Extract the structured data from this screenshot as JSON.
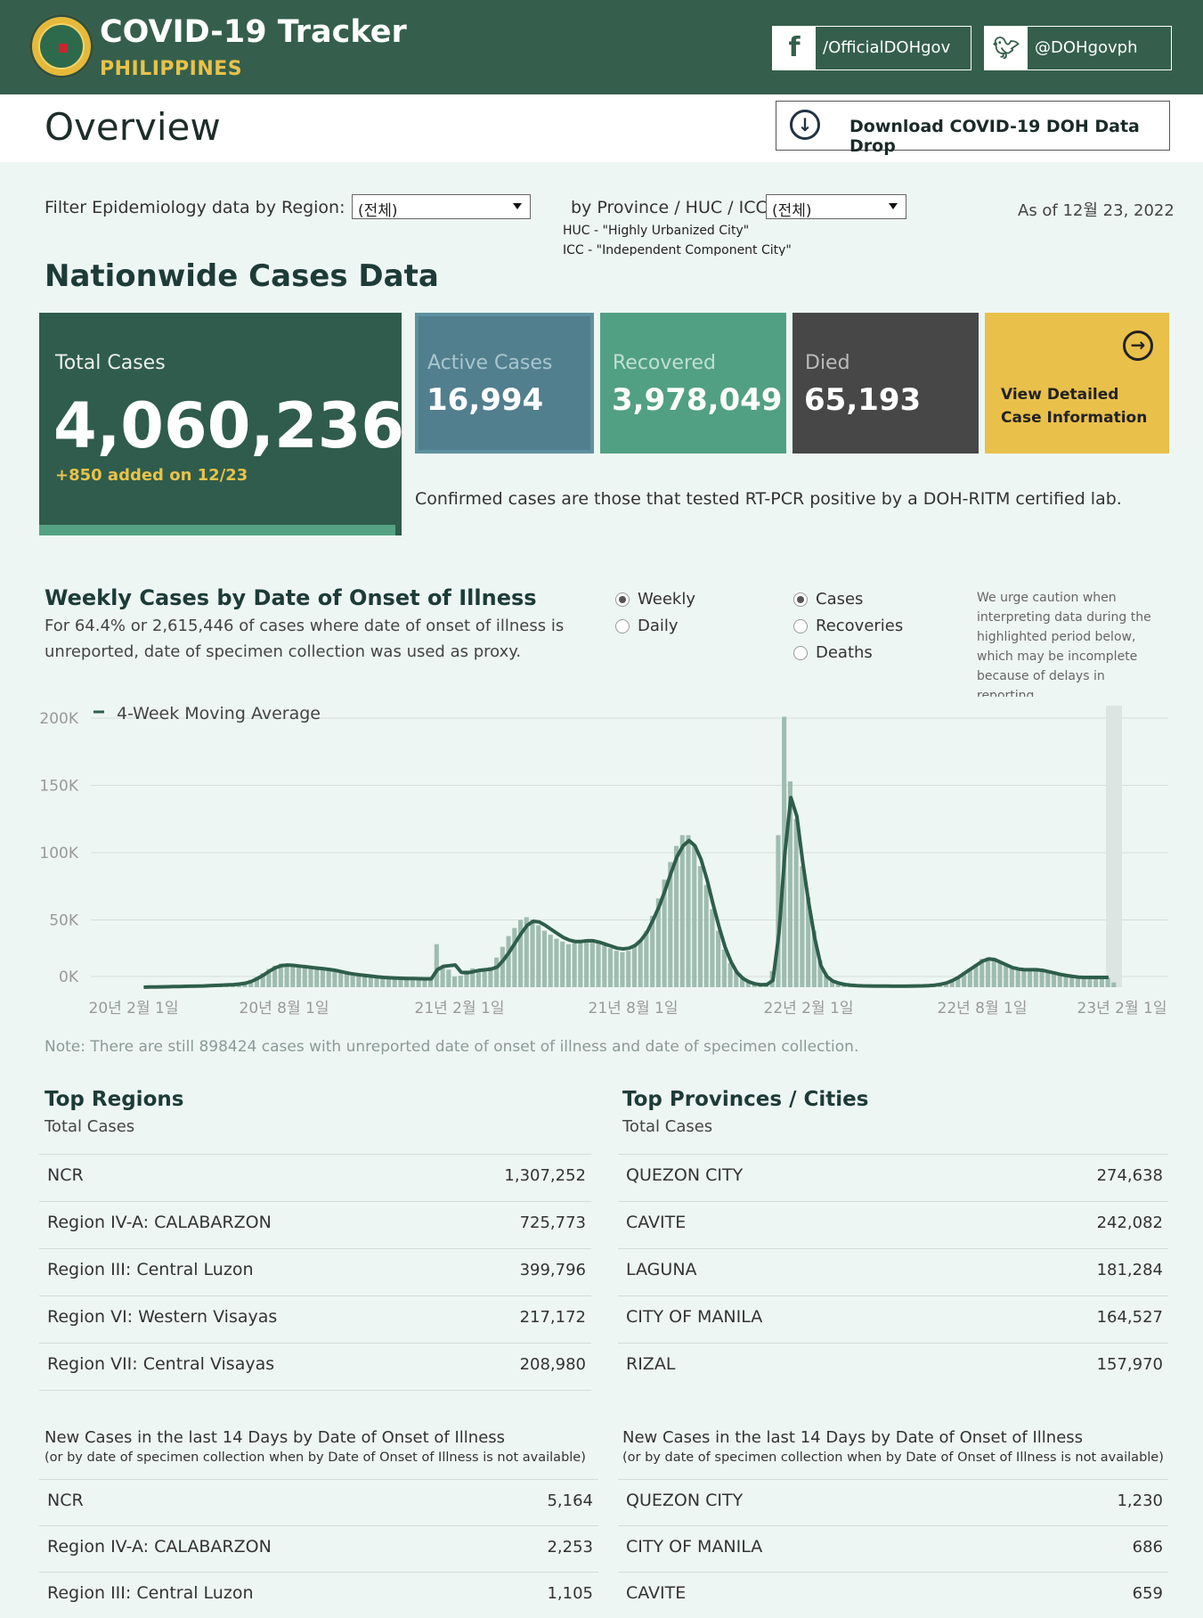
{
  "header": {
    "title": "COVID-19 Tracker",
    "subtitle": "PHILIPPINES",
    "facebook": {
      "icon": "facebook-icon",
      "label": "/OfficialDOHgov"
    },
    "twitter": {
      "icon": "twitter-icon",
      "label": "@DOHgovph"
    }
  },
  "overview": {
    "title": "Overview",
    "download_label": "Download COVID-19 DOH Data Drop"
  },
  "filters": {
    "region_label": "Filter Epidemiology data by Region:",
    "region_value": "(전체)",
    "province_label": "by Province / HUC / ICC:",
    "province_value": "(전체)",
    "huc_note": "HUC - \"Highly Urbanized City\"",
    "icc_note": "ICC - \"Independent Component City\"",
    "as_of": "As of 12월 23, 2022"
  },
  "nationwide": {
    "title": "Nationwide Cases Data",
    "total": {
      "label": "Total Cases",
      "value": "4,060,236",
      "added": "+850 added on 12/23"
    },
    "active": {
      "label": "Active Cases",
      "value": "16,994"
    },
    "recovered": {
      "label": "Recovered",
      "value": "3,978,049"
    },
    "died": {
      "label": "Died",
      "value": "65,193"
    },
    "detail": {
      "line1": "View Detailed",
      "line2": "Case Information"
    },
    "confirmed_note": "Confirmed cases are those that tested RT-PCR positive by a DOH-RITM certified lab."
  },
  "weekly": {
    "title": "Weekly Cases by Date of Onset of Illness",
    "desc1": "For 64.4% or 2,615,446 of cases where date of onset of illness is",
    "desc2": "unreported, date of specimen collection was used as proxy.",
    "period_options": [
      {
        "label": "Weekly",
        "selected": true
      },
      {
        "label": "Daily",
        "selected": false
      }
    ],
    "metric_options": [
      {
        "label": "Cases",
        "selected": true
      },
      {
        "label": "Recoveries",
        "selected": false
      },
      {
        "label": "Deaths",
        "selected": false
      }
    ],
    "caution": [
      "We urge caution when",
      "interpreting data during the",
      "highlighted period below,",
      "which may be incomplete",
      "because of delays in",
      "reporting."
    ],
    "unreported_note": "Note: There are still 898424 cases with unreported date of onset of illness and date of specimen collection."
  },
  "chart_data": {
    "type": "bar",
    "legend": "4-Week Moving Average",
    "yticks": [
      "200K",
      "150K",
      "100K",
      "50K",
      "0K"
    ],
    "ylim": [
      0,
      200000
    ],
    "xticks": [
      "20년 2월 1일",
      "20년 8월 1일",
      "21년 2월 1일",
      "21년 8월 1일",
      "22년 2월 1일",
      "22년 8월 1일",
      "23년 2월 1일"
    ],
    "colors": {
      "bars": "#9fbcb0",
      "line": "#2e5e4b",
      "highlight": "#dde5e3"
    },
    "weekly_cases": [
      0,
      100,
      200,
      300,
      400,
      500,
      600,
      700,
      800,
      900,
      1000,
      1200,
      1400,
      1600,
      1800,
      2000,
      2500,
      3500,
      5500,
      7500,
      10500,
      13500,
      16000,
      17500,
      17000,
      16000,
      15500,
      15000,
      14500,
      14000,
      13500,
      13000,
      12000,
      11000,
      10000,
      9500,
      9000,
      8500,
      8000,
      7500,
      7000,
      6800,
      6600,
      6500,
      6400,
      6300,
      6200,
      6100,
      6200,
      32000,
      15000,
      13000,
      8000,
      8500,
      12500,
      14000,
      13000,
      13500,
      15000,
      22000,
      30000,
      38000,
      44000,
      50000,
      52000,
      50000,
      46000,
      42000,
      39000,
      36000,
      34000,
      32000,
      33000,
      34000,
      35000,
      34000,
      33000,
      31000,
      29000,
      27000,
      26000,
      27000,
      30000,
      34000,
      42000,
      53000,
      66000,
      80000,
      93000,
      105000,
      113000,
      113000,
      105000,
      90000,
      76000,
      58000,
      42000,
      28000,
      18000,
      12000,
      8000,
      5000,
      3000,
      2000,
      2000,
      12000,
      113000,
      201000,
      153000,
      125000,
      90000,
      67000,
      42000,
      20000,
      9000,
      5000,
      3000,
      2000,
      1500,
      1200,
      1000,
      900,
      800,
      800,
      800,
      700,
      700,
      700,
      800,
      900,
      1000,
      1200,
      1500,
      2000,
      3000,
      5000,
      8000,
      11000,
      14000,
      17000,
      21000,
      22000,
      20000,
      18000,
      16000,
      14000,
      13000,
      12000,
      12000,
      12000,
      12000,
      11000,
      10000,
      9500,
      9000,
      8500,
      8000,
      7800,
      7600,
      7500,
      7400,
      7300,
      3500
    ],
    "moving_average": [
      0,
      100,
      150,
      250,
      350,
      450,
      550,
      650,
      750,
      850,
      950,
      1100,
      1300,
      1500,
      1700,
      1900,
      2300,
      3000,
      4300,
      6500,
      9000,
      12000,
      14500,
      16000,
      16500,
      16200,
      15700,
      15200,
      14700,
      14200,
      13700,
      13200,
      12500,
      11500,
      10500,
      9800,
      9200,
      8700,
      8200,
      7700,
      7300,
      7000,
      6800,
      6600,
      6500,
      6400,
      6300,
      6200,
      6200,
      13000,
      15500,
      16000,
      16500,
      11000,
      10700,
      11500,
      12500,
      13000,
      13500,
      15000,
      20000,
      26000,
      33000,
      40000,
      46000,
      49000,
      48500,
      46000,
      43000,
      40000,
      37000,
      35000,
      34000,
      34000,
      34500,
      34500,
      33500,
      32000,
      30500,
      29000,
      28500,
      29000,
      31000,
      35000,
      41000,
      50000,
      60000,
      72000,
      85000,
      97000,
      105000,
      109000,
      105000,
      95000,
      80000,
      62000,
      45000,
      30000,
      19000,
      11000,
      6500,
      4000,
      2500,
      1800,
      2000,
      5000,
      40000,
      100000,
      141000,
      127000,
      92000,
      62000,
      36000,
      16000,
      8000,
      4500,
      3000,
      2000,
      1500,
      1200,
      1000,
      900,
      800,
      800,
      800,
      700,
      700,
      700,
      800,
      900,
      1000,
      1200,
      1500,
      2200,
      3200,
      5000,
      7500,
      10500,
      13500,
      16500,
      19500,
      21000,
      20500,
      18500,
      16500,
      14500,
      13500,
      13000,
      13000,
      13000,
      12500,
      11500,
      10500,
      9500,
      8700,
      8000,
      7500,
      7300,
      7300,
      7300,
      7300,
      7300
    ]
  },
  "top_regions": {
    "title": "Top Regions",
    "subtitle": "Total Cases",
    "rows": [
      {
        "name": "NCR",
        "value": "1,307,252"
      },
      {
        "name": "Region IV-A: CALABARZON",
        "value": "725,773"
      },
      {
        "name": "Region III: Central Luzon",
        "value": "399,796"
      },
      {
        "name": "Region VI: Western Visayas",
        "value": "217,172"
      },
      {
        "name": "Region VII: Central Visayas",
        "value": "208,980"
      }
    ],
    "new_title": "New Cases in the last 14 Days by Date of Onset of Illness",
    "new_subtitle": "(or by date of specimen collection when by Date of Onset of Illness is not available)",
    "new_rows": [
      {
        "name": "NCR",
        "value": "5,164"
      },
      {
        "name": "Region IV-A: CALABARZON",
        "value": "2,253"
      },
      {
        "name": "Region III: Central Luzon",
        "value": "1,105"
      }
    ]
  },
  "top_provinces": {
    "title": "Top Provinces / Cities",
    "subtitle": "Total Cases",
    "rows": [
      {
        "name": "QUEZON CITY",
        "value": "274,638"
      },
      {
        "name": "CAVITE",
        "value": "242,082"
      },
      {
        "name": "LAGUNA",
        "value": "181,284"
      },
      {
        "name": "CITY OF MANILA",
        "value": "164,527"
      },
      {
        "name": "RIZAL",
        "value": "157,970"
      }
    ],
    "new_title": "New Cases in the last 14 Days by Date of Onset of Illness",
    "new_subtitle": "(or by date of specimen collection when by Date of Onset of Illness is not available)",
    "new_rows": [
      {
        "name": "QUEZON CITY",
        "value": "1,230"
      },
      {
        "name": "CITY OF MANILA",
        "value": "686"
      },
      {
        "name": "CAVITE",
        "value": "659"
      }
    ]
  }
}
